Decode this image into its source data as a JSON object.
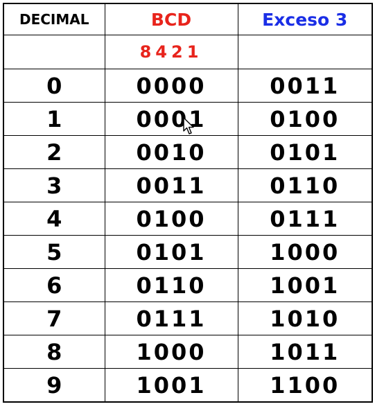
{
  "header": {
    "decimal": "DECIMAL",
    "bcd": "BCD",
    "excess3": "Exceso 3",
    "bcd_weights": "8421",
    "colors": {
      "bcd": "#e8241c",
      "excess3": "#1a2ee6"
    }
  },
  "rows": [
    {
      "decimal": "0",
      "bcd": "0000",
      "excess3": "0011"
    },
    {
      "decimal": "1",
      "bcd": "0001",
      "excess3": "0100"
    },
    {
      "decimal": "2",
      "bcd": "0010",
      "excess3": "0101"
    },
    {
      "decimal": "3",
      "bcd": "0011",
      "excess3": "0110"
    },
    {
      "decimal": "4",
      "bcd": "0100",
      "excess3": "0111"
    },
    {
      "decimal": "5",
      "bcd": "0101",
      "excess3": "1000"
    },
    {
      "decimal": "6",
      "bcd": "0110",
      "excess3": "1001"
    },
    {
      "decimal": "7",
      "bcd": "0111",
      "excess3": "1010"
    },
    {
      "decimal": "8",
      "bcd": "1000",
      "excess3": "1011"
    },
    {
      "decimal": "9",
      "bcd": "1001",
      "excess3": "1100"
    }
  ],
  "cursor": {
    "icon": "mouse-pointer-icon"
  }
}
